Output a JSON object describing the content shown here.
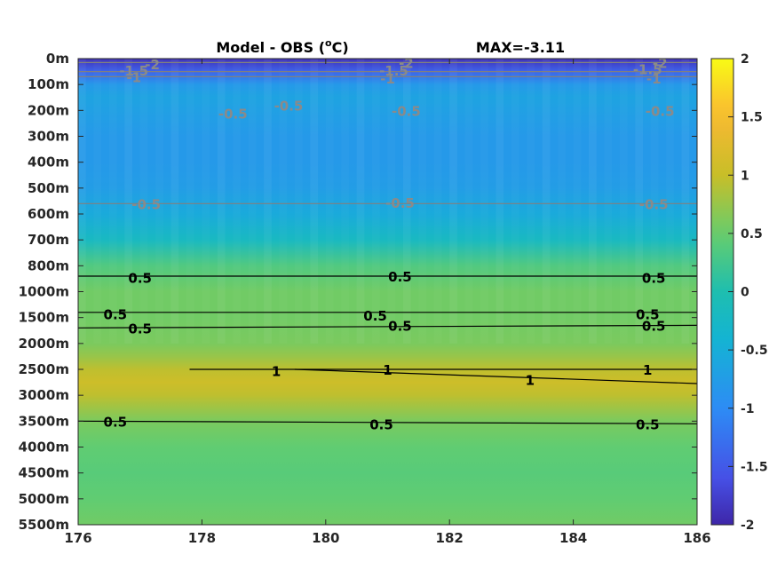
{
  "chart_data": {
    "type": "heatmap",
    "title": "Model - OBS (",
    "title_unit": "o",
    "title_unit_suffix": "C)",
    "subtitle": "MAX=-3.11",
    "xlabel": "",
    "ylabel": "",
    "xlim": [
      176,
      186
    ],
    "x_ticks": [
      "176",
      "178",
      "180",
      "182",
      "184",
      "186"
    ],
    "y_ticks": [
      "0m",
      "100m",
      "200m",
      "300m",
      "400m",
      "500m",
      "600m",
      "700m",
      "800m",
      "1000m",
      "1500m",
      "2000m",
      "2500m",
      "3000m",
      "3500m",
      "4000m",
      "4500m",
      "5000m",
      "5500m"
    ],
    "colorbar": {
      "ticks": [
        "2",
        "1.5",
        "1",
        "0.5",
        "0",
        "-0.5",
        "-1",
        "-1.5",
        "-2"
      ],
      "range": [
        -2,
        2
      ],
      "colormap": "parula"
    },
    "field_profile": {
      "depth_level": [
        0,
        0.5,
        1,
        1.5,
        2,
        3,
        4,
        5,
        6,
        7,
        8,
        9,
        10,
        11,
        11.5,
        12,
        12.5,
        13,
        14,
        15,
        16,
        17,
        18
      ],
      "value": [
        -1.9,
        -1.4,
        -0.8,
        -0.65,
        -0.7,
        -0.8,
        -0.8,
        -0.75,
        -0.55,
        -0.2,
        0.35,
        0.55,
        0.55,
        0.6,
        0.75,
        0.95,
        1.05,
        0.95,
        0.6,
        0.45,
        0.4,
        0.45,
        0.55
      ]
    },
    "contours": [
      {
        "level": "0.5",
        "color": "#000000",
        "points": [
          [
            176,
            8.4
          ],
          [
            186,
            8.4
          ]
        ],
        "labels": [
          [
            177,
            8.45
          ],
          [
            181.2,
            8.4
          ],
          [
            185.3,
            8.45
          ]
        ]
      },
      {
        "level": "0.5",
        "color": "#000000",
        "points": [
          [
            176,
            9.8
          ],
          [
            186,
            9.8
          ]
        ],
        "labels": [
          [
            176.6,
            9.85
          ],
          [
            180.8,
            9.9
          ],
          [
            185.2,
            9.85
          ]
        ]
      },
      {
        "level": "0.5",
        "color": "#000000",
        "points": [
          [
            176,
            10.4
          ],
          [
            186,
            10.3
          ]
        ],
        "labels": [
          [
            177,
            10.4
          ],
          [
            181.2,
            10.3
          ],
          [
            185.3,
            10.3
          ]
        ]
      },
      {
        "level": "1",
        "color": "#000000",
        "points": [
          [
            177.8,
            12.0
          ],
          [
            181,
            12.0
          ],
          [
            186,
            12.0
          ]
        ],
        "labels": [
          [
            179.2,
            12.05
          ],
          [
            181,
            12.0
          ],
          [
            185.2,
            12.0
          ]
        ]
      },
      {
        "level": "1",
        "color": "#000000",
        "points": [
          [
            179.5,
            12.0
          ],
          [
            186,
            12.55
          ]
        ],
        "labels": [
          [
            183.3,
            12.4
          ]
        ]
      },
      {
        "level": "0.5",
        "color": "#000000",
        "points": [
          [
            176,
            14.0
          ],
          [
            186,
            14.1
          ]
        ],
        "labels": [
          [
            176.6,
            14.0
          ],
          [
            180.9,
            14.1
          ],
          [
            185.2,
            14.1
          ]
        ]
      },
      {
        "level": "-0.5",
        "color": "#808080",
        "points": [
          [
            176,
            5.6
          ],
          [
            186,
            5.6
          ]
        ],
        "labels": [
          [
            177.1,
            5.6
          ],
          [
            181.2,
            5.55
          ],
          [
            185.3,
            5.6
          ]
        ]
      },
      {
        "level": "-0.5",
        "color": "#808080",
        "points": [],
        "labels": [
          [
            178.5,
            2.1
          ],
          [
            179.4,
            1.8
          ],
          [
            181.3,
            2.0
          ],
          [
            185.4,
            2.0
          ]
        ]
      },
      {
        "level": "-1.5",
        "color": "#808080",
        "points": [
          [
            176,
            0.5
          ],
          [
            186,
            0.5
          ]
        ],
        "labels": [
          [
            176.9,
            0.45
          ],
          [
            181.1,
            0.45
          ],
          [
            185.2,
            0.4
          ]
        ]
      },
      {
        "level": "-1",
        "color": "#808080",
        "points": [
          [
            176,
            0.7
          ],
          [
            186,
            0.7
          ]
        ],
        "labels": [
          [
            176.9,
            0.7
          ],
          [
            181.0,
            0.75
          ],
          [
            185.3,
            0.75
          ]
        ]
      },
      {
        "level": "-2",
        "color": "#808080",
        "points": [
          [
            176,
            0.15
          ],
          [
            186,
            0.15
          ]
        ],
        "labels": [
          [
            177.2,
            0.2
          ],
          [
            181.3,
            0.15
          ],
          [
            185.4,
            0.15
          ]
        ]
      }
    ]
  }
}
